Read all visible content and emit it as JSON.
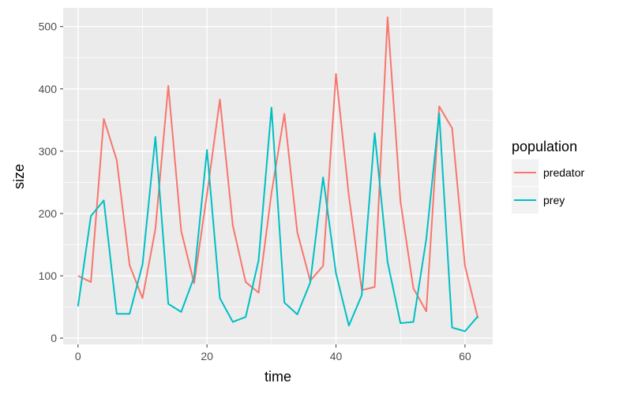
{
  "chart_data": {
    "type": "line",
    "xlabel": "time",
    "ylabel": "size",
    "xlim": [
      -2.3,
      64.3
    ],
    "ylim": [
      -10,
      530
    ],
    "xticks": [
      0,
      20,
      40,
      60
    ],
    "yticks": [
      0,
      100,
      200,
      300,
      400,
      500
    ],
    "grid": true,
    "legend": {
      "title": "population",
      "position": "right"
    },
    "series": [
      {
        "name": "predator",
        "color": "#F8766D",
        "x": [
          0,
          2,
          4,
          6,
          8,
          10,
          12,
          14,
          16,
          18,
          20,
          22,
          24,
          26,
          28,
          30,
          32,
          34,
          36,
          38,
          40,
          42,
          44,
          46,
          48,
          50,
          52,
          54,
          56,
          58,
          60,
          62
        ],
        "y": [
          100,
          90,
          352,
          286,
          117,
          64,
          175,
          405,
          172,
          88,
          231,
          383,
          181,
          90,
          73,
          233,
          360,
          170,
          92,
          116,
          424,
          228,
          77,
          82,
          515,
          219,
          80,
          43,
          372,
          337,
          116,
          32
        ]
      },
      {
        "name": "prey",
        "color": "#00BFC4",
        "x": [
          0,
          2,
          4,
          6,
          8,
          10,
          12,
          14,
          16,
          18,
          20,
          22,
          24,
          26,
          28,
          30,
          32,
          34,
          36,
          38,
          40,
          42,
          44,
          46,
          48,
          50,
          52,
          54,
          56,
          58,
          60,
          62
        ],
        "y": [
          51,
          196,
          221,
          39,
          39,
          118,
          323,
          55,
          42,
          98,
          302,
          64,
          26,
          34,
          125,
          370,
          57,
          38,
          89,
          258,
          104,
          20,
          69,
          329,
          122,
          24,
          26,
          159,
          361,
          17,
          11,
          35
        ]
      }
    ]
  }
}
